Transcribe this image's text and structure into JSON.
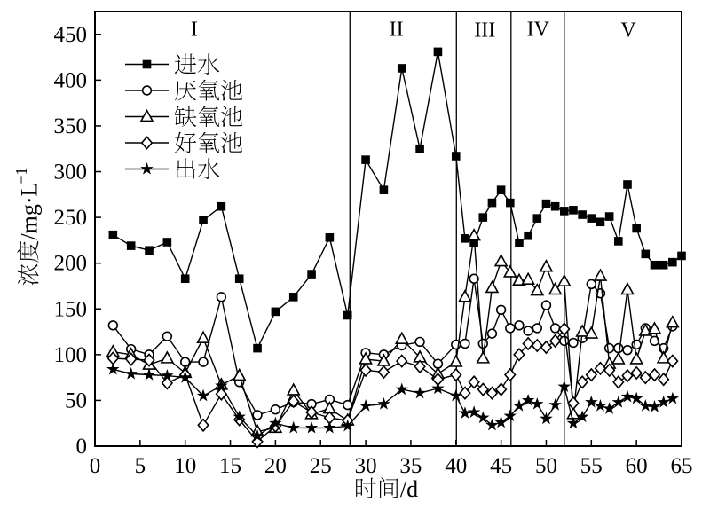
{
  "figure": {
    "background": "#ffffff",
    "ink_color": "#000000"
  },
  "chart_data": {
    "type": "line",
    "title": "",
    "xlabel": "时间/d",
    "ylabel": "浓度/mg·L⁻¹",
    "xlabel_cjk": "时间",
    "xlabel_latin": "/d",
    "ylabel_cjk": "浓度",
    "ylabel_latin": "/mg·L",
    "ylabel_sup": "−1",
    "xlim": [
      0,
      65
    ],
    "ylim": [
      0,
      475
    ],
    "xticks": [
      0,
      5,
      10,
      15,
      20,
      25,
      30,
      35,
      40,
      45,
      50,
      55,
      60,
      65
    ],
    "yticks": [
      0,
      50,
      100,
      150,
      200,
      250,
      300,
      350,
      400,
      450
    ],
    "grid": false,
    "legend_position": "upper-left-inside",
    "phase_dividers_x": [
      28.25,
      40.05,
      46.1,
      52.0
    ],
    "phase_labels": [
      {
        "text": "I",
        "x": 11.0,
        "y": 456
      },
      {
        "text": "II",
        "x": 33.4,
        "y": 456
      },
      {
        "text": "III",
        "x": 43.2,
        "y": 455
      },
      {
        "text": "IV",
        "x": 49.1,
        "y": 456
      },
      {
        "text": "V",
        "x": 59.1,
        "y": 455
      }
    ],
    "x_common": [
      2,
      4,
      6,
      8,
      10,
      12,
      14,
      16,
      18,
      20,
      22,
      24,
      26,
      28,
      30,
      32,
      34,
      36,
      38,
      40,
      41,
      42,
      43,
      44,
      45,
      46,
      47,
      48,
      49,
      50,
      51,
      52,
      53,
      54,
      55,
      56,
      57,
      58,
      59,
      60,
      61,
      62,
      63,
      64,
      65
    ],
    "series": [
      {
        "name": "进水",
        "marker": "square-filled",
        "y": [
          231,
          219,
          214,
          223,
          183,
          247,
          262,
          183,
          107,
          147,
          163,
          188,
          228,
          143,
          313,
          280,
          413,
          325,
          431,
          317,
          227,
          222,
          250,
          266,
          280,
          266,
          222,
          230,
          249,
          265,
          262,
          257,
          258,
          253,
          249,
          245,
          251,
          224,
          286,
          238,
          210,
          198,
          198,
          201,
          208
        ]
      },
      {
        "name": "厌氧池",
        "marker": "circle-open",
        "y": [
          132,
          106,
          100,
          120,
          92,
          92,
          163,
          70,
          34,
          40,
          48,
          46,
          51,
          45,
          102,
          100,
          110,
          114,
          90,
          111,
          112,
          183,
          112,
          123,
          149,
          129,
          132,
          126,
          129,
          154,
          129,
          115,
          113,
          118,
          177,
          167,
          107,
          107,
          105,
          111,
          129,
          115,
          107,
          131,
          null
        ]
      },
      {
        "name": "缺氧池",
        "marker": "triangle-open",
        "y": [
          103,
          100,
          89,
          96,
          80,
          118,
          67,
          77,
          16,
          20,
          61,
          35,
          41,
          28,
          95,
          93,
          117,
          97,
          79,
          92,
          163,
          230,
          96,
          173,
          202,
          190,
          181,
          182,
          170,
          196,
          171,
          180,
          35,
          125,
          123,
          186,
          90,
          95,
          171,
          95,
          126,
          128,
          96,
          135,
          null
        ]
      },
      {
        "name": "好氧池",
        "marker": "diamond-open",
        "y": [
          96,
          95,
          94,
          69,
          78,
          23,
          57,
          29,
          5,
          22,
          49,
          37,
          31,
          28,
          83,
          81,
          93,
          87,
          73,
          78,
          58,
          70,
          62,
          58,
          62,
          78,
          100,
          112,
          110,
          108,
          115,
          128,
          47,
          70,
          78,
          85,
          83,
          70,
          77,
          80,
          75,
          78,
          73,
          93,
          null
        ]
      },
      {
        "name": "出水",
        "marker": "star-filled",
        "y": [
          84,
          79,
          78,
          77,
          75,
          55,
          66,
          32,
          11,
          25,
          20,
          20,
          20,
          22,
          44,
          46,
          62,
          58,
          63,
          55,
          36,
          37,
          31,
          23,
          26,
          33,
          44,
          50,
          46,
          30,
          45,
          65,
          25,
          32,
          48,
          44,
          41,
          48,
          54,
          52,
          44,
          43,
          48,
          52,
          null
        ]
      }
    ],
    "legend": {
      "items": [
        {
          "label": "进水",
          "marker": "square-filled"
        },
        {
          "label": "厌氧池",
          "marker": "circle-open"
        },
        {
          "label": "缺氧池",
          "marker": "triangle-open"
        },
        {
          "label": "好氧池",
          "marker": "diamond-open"
        },
        {
          "label": "出水",
          "marker": "star-filled"
        }
      ]
    }
  }
}
